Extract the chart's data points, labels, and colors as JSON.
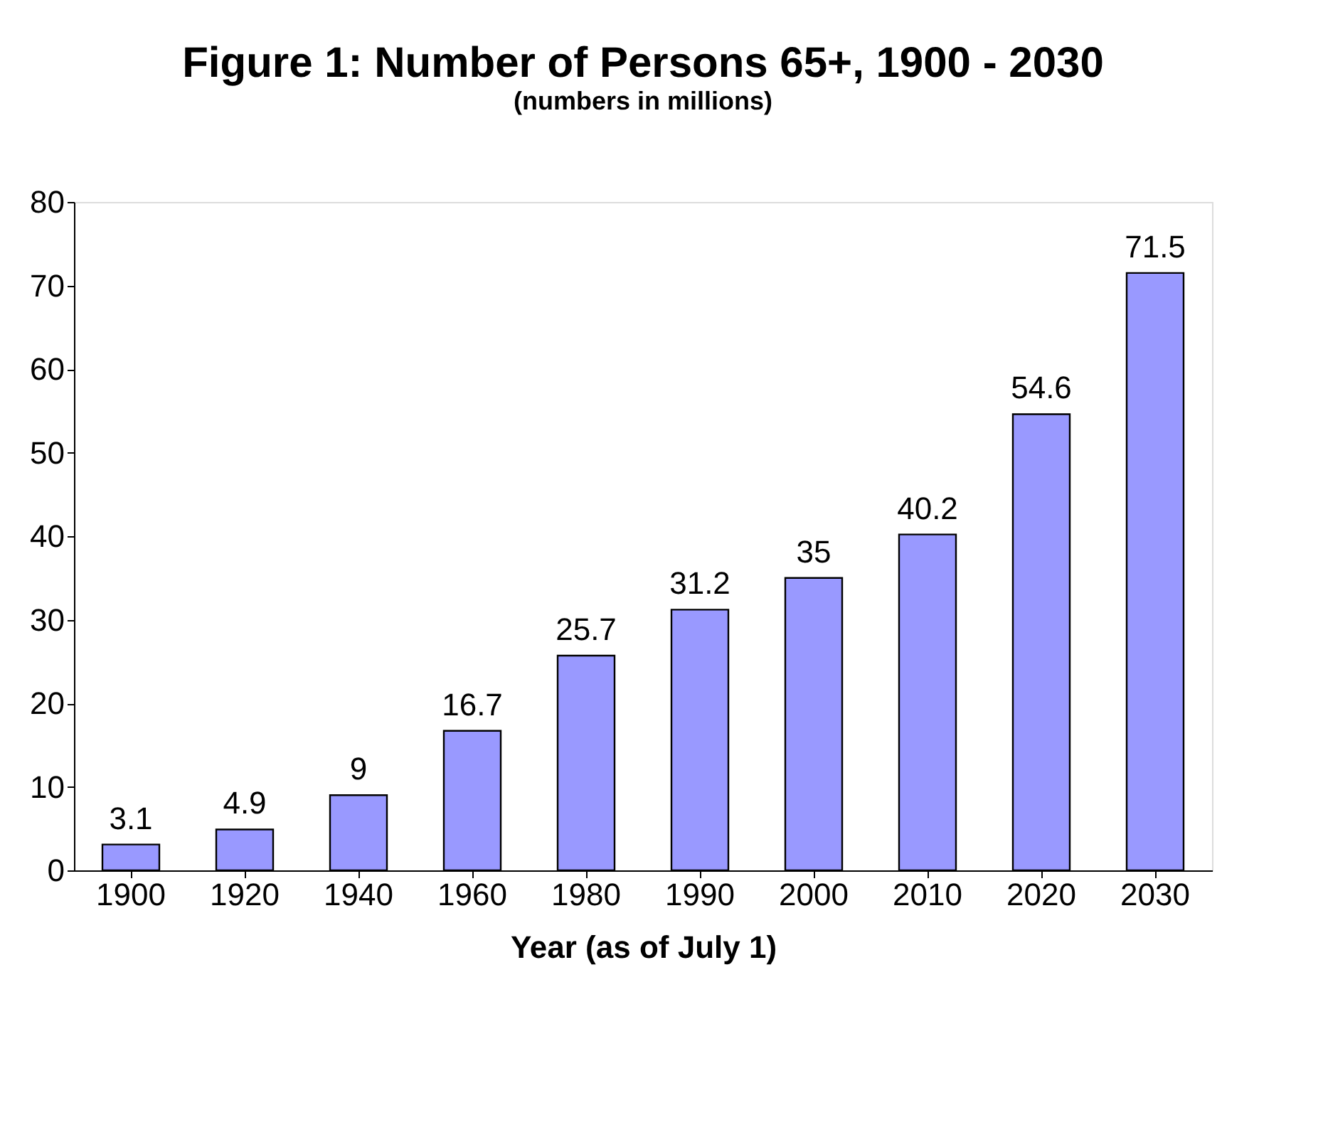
{
  "chart_data": {
    "type": "bar",
    "title": "Figure 1: Number of Persons 65+, 1900 - 2030",
    "subtitle": "(numbers in millions)",
    "xlabel": "Year (as of July 1)",
    "categories": [
      "1900",
      "1920",
      "1940",
      "1960",
      "1980",
      "1990",
      "2000",
      "2010",
      "2020",
      "2030"
    ],
    "values": [
      3.1,
      4.9,
      9,
      16.7,
      25.7,
      31.2,
      35,
      40.2,
      54.6,
      71.5
    ],
    "color": "#9999ff",
    "ylim": [
      0,
      80
    ],
    "yticks": [
      0,
      10,
      20,
      30,
      40,
      50,
      60,
      70,
      80
    ],
    "grid": false,
    "data_labels": true
  }
}
